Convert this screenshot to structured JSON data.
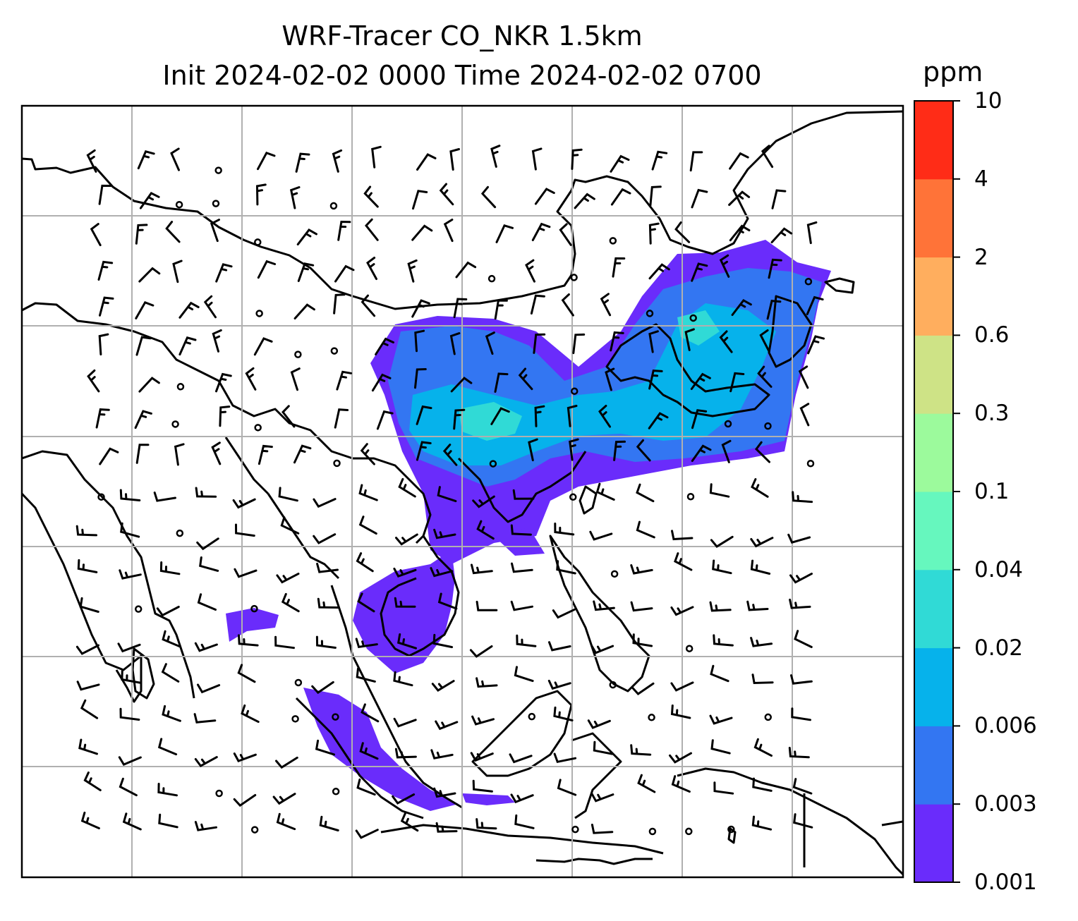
{
  "title": {
    "line1": "WRF-Tracer CO_NKR 1.5km",
    "line2": "Init 2024-02-02 0000 Time 2024-02-02 0700"
  },
  "colorbar": {
    "unit": "ppm",
    "ticks": [
      "0.001",
      "0.003",
      "0.006",
      "0.02",
      "0.04",
      "0.1",
      "0.3",
      "0.6",
      "2",
      "4",
      "10"
    ],
    "colors": [
      "#6a2cfb",
      "#3376f2",
      "#06b2eb",
      "#30dad6",
      "#66f7be",
      "#9cfa9c",
      "#cee386",
      "#ffae5e",
      "#ff7338",
      "#ff2c17"
    ]
  },
  "map": {
    "plume_colors": {
      "base": "#6a2cfb",
      "level2": "#3376f2",
      "level3": "#06b2eb",
      "level4": "#30dad6"
    },
    "gridlines": true,
    "wind_barbs": true
  }
}
